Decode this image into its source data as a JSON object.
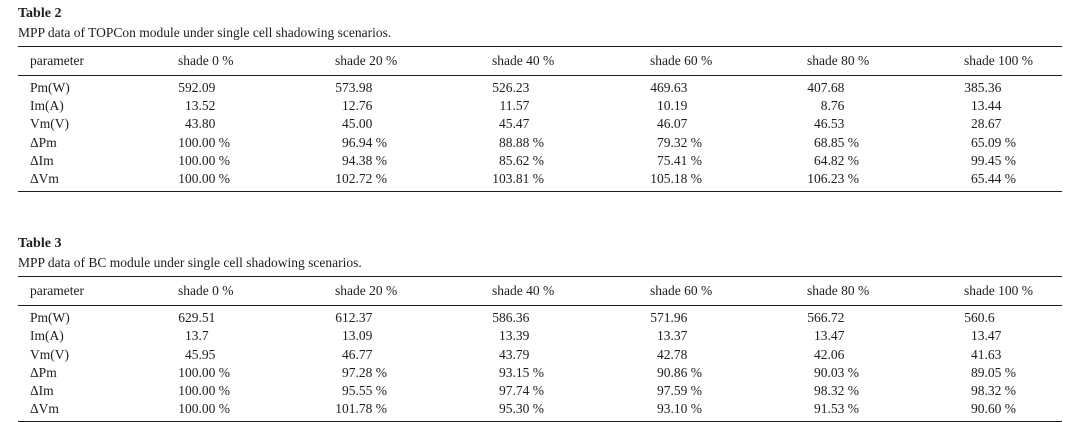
{
  "document": {
    "background": "#ffffff",
    "text_color": "#1d1d1b",
    "rule_color": "#1d1d1b"
  },
  "tables": [
    {
      "label": "Table 2",
      "caption": "MPP data of TOPCon module under single cell shadowing scenarios.",
      "columns": [
        "parameter",
        "shade 0 %",
        "shade 20 %",
        "shade 40 %",
        "shade 60 %",
        "shade 80 %",
        "shade 100 %"
      ],
      "rows": [
        {
          "parameter": "Pm(W)",
          "values": [
            "592.09",
            "573.98",
            "526.23",
            "469.63",
            "407.68",
            "385.36"
          ]
        },
        {
          "parameter": "Im(A)",
          "values": [
            "13.52",
            "12.76",
            "11.57",
            "10.19",
            "8.76",
            "13.44"
          ]
        },
        {
          "parameter": "Vm(V)",
          "values": [
            "43.80",
            "45.00",
            "45.47",
            "46.07",
            "46.53",
            "28.67"
          ]
        },
        {
          "parameter": "ΔPm",
          "values": [
            "100.00 %",
            "96.94 %",
            "88.88 %",
            "79.32 %",
            "68.85 %",
            "65.09 %"
          ]
        },
        {
          "parameter": "ΔIm",
          "values": [
            "100.00 %",
            "94.38 %",
            "85.62 %",
            "75.41 %",
            "64.82 %",
            "99.45 %"
          ]
        },
        {
          "parameter": "ΔVm",
          "values": [
            "100.00 %",
            "102.72 %",
            "103.81 %",
            "105.18 %",
            "106.23 %",
            "65.44 %"
          ]
        }
      ]
    },
    {
      "label": "Table 3",
      "caption": "MPP data of BC module under single cell shadowing scenarios.",
      "columns": [
        "parameter",
        "shade 0 %",
        "shade 20 %",
        "shade 40 %",
        "shade 60 %",
        "shade 80 %",
        "shade 100 %"
      ],
      "rows": [
        {
          "parameter": "Pm(W)",
          "values": [
            "629.51",
            "612.37",
            "586.36",
            "571.96",
            "566.72",
            "560.6"
          ]
        },
        {
          "parameter": "Im(A)",
          "values": [
            "13.7",
            "13.09",
            "13.39",
            "13.37",
            "13.47",
            "13.47"
          ]
        },
        {
          "parameter": "Vm(V)",
          "values": [
            "45.95",
            "46.77",
            "43.79",
            "42.78",
            "42.06",
            "41.63"
          ]
        },
        {
          "parameter": "ΔPm",
          "values": [
            "100.00 %",
            "97.28 %",
            "93.15 %",
            "90.86 %",
            "90.03 %",
            "89.05 %"
          ]
        },
        {
          "parameter": "ΔIm",
          "values": [
            "100.00 %",
            "95.55 %",
            "97.74 %",
            "97.59 %",
            "98.32 %",
            "98.32 %"
          ]
        },
        {
          "parameter": "ΔVm",
          "values": [
            "100.00 %",
            "101.78 %",
            "95.30 %",
            "93.10 %",
            "91.53 %",
            "90.60 %"
          ]
        }
      ]
    }
  ]
}
